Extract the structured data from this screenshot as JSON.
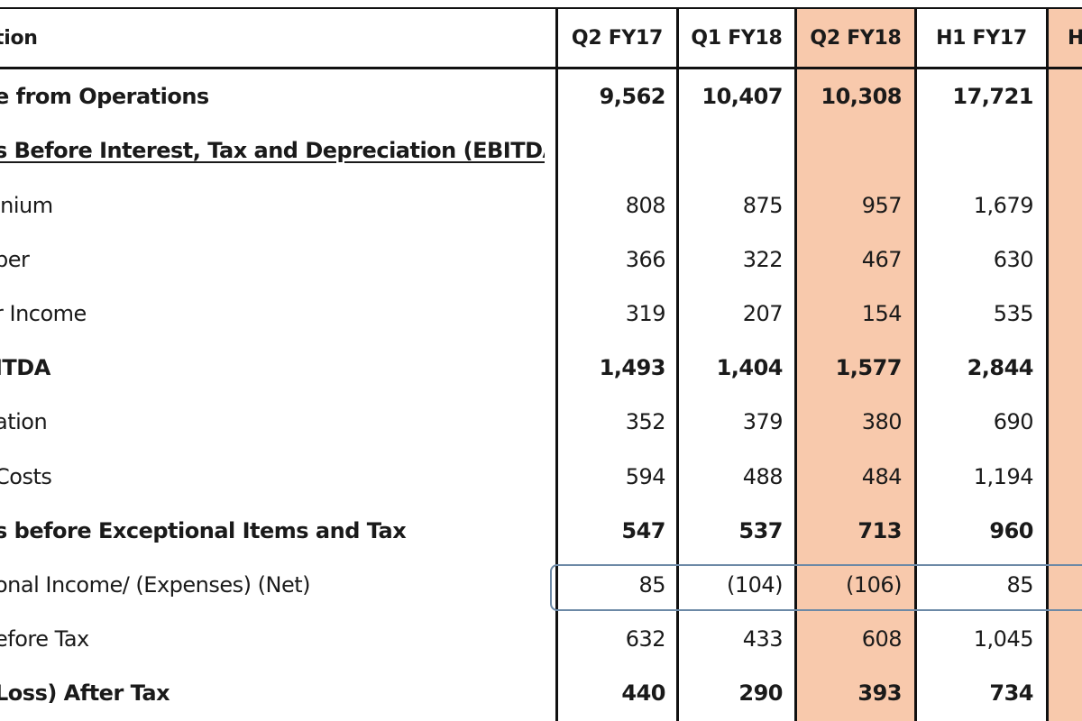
{
  "header": {
    "label_col": "tion",
    "columns": [
      "Q2 FY17",
      "Q1 FY18",
      "Q2 FY18",
      "H1 FY17",
      "H"
    ]
  },
  "rows": [
    {
      "label": "e from Operations",
      "bold": true,
      "underline": false,
      "values": [
        "9,562",
        "10,407",
        "10,308",
        "17,721"
      ]
    },
    {
      "label": "s Before Interest, Tax and Depreciation (EBITDA)",
      "bold": true,
      "underline": true,
      "values": [
        "",
        "",
        "",
        ""
      ]
    },
    {
      "label": "inium",
      "bold": false,
      "underline": false,
      "values": [
        "808",
        "875",
        "957",
        "1,679"
      ]
    },
    {
      "label": "per",
      "bold": false,
      "underline": false,
      "values": [
        "366",
        "322",
        "467",
        "630"
      ]
    },
    {
      "label": "r Income",
      "bold": false,
      "underline": false,
      "values": [
        "319",
        "207",
        "154",
        "535"
      ]
    },
    {
      "label": "ITDA",
      "bold": true,
      "underline": false,
      "values": [
        "1,493",
        "1,404",
        "1,577",
        "2,844"
      ]
    },
    {
      "label": "ation",
      "bold": false,
      "underline": false,
      "values": [
        "352",
        "379",
        "380",
        "690"
      ]
    },
    {
      "label": "Costs",
      "bold": false,
      "underline": false,
      "values": [
        "594",
        "488",
        "484",
        "1,194"
      ]
    },
    {
      "label": "s before Exceptional Items and Tax",
      "bold": true,
      "underline": false,
      "values": [
        "547",
        "537",
        "713",
        "960"
      ]
    },
    {
      "label": "onal Income/ (Expenses) (Net)",
      "bold": false,
      "underline": false,
      "values": [
        "85",
        "(104)",
        "(106)",
        "85"
      ]
    },
    {
      "label": "efore Tax",
      "bold": false,
      "underline": false,
      "values": [
        "632",
        "433",
        "608",
        "1,045"
      ]
    },
    {
      "label": "Loss) After Tax",
      "bold": true,
      "underline": false,
      "values": [
        "440",
        "290",
        "393",
        "734"
      ]
    }
  ],
  "colors": {
    "highlight_fill": "#f8c9ac",
    "box_outline": "#6c89a6",
    "grid": "#111111"
  }
}
